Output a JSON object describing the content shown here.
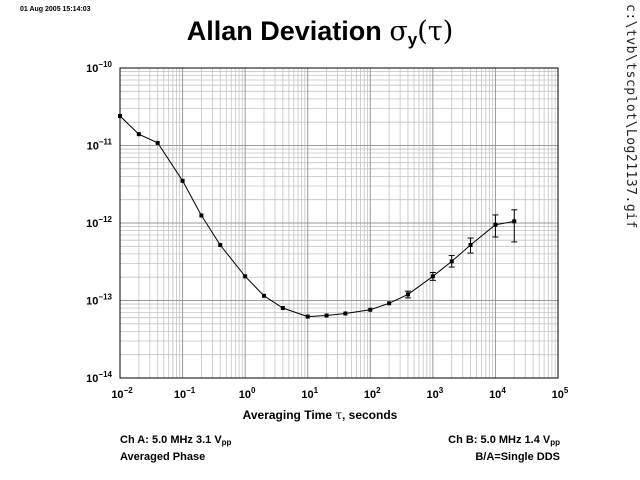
{
  "header": {
    "timestamp": "01 Aug 2005 15:14:03",
    "title_text": "Allan Deviation",
    "title_symbol": "σ",
    "title_subscript": "y",
    "title_paren": "(τ)",
    "file_path": "c:\\tvb\\tscplot\\Log21137.gif"
  },
  "chart_data": {
    "type": "line",
    "title": "Allan Deviation σy(τ)",
    "xlabel": "Averaging Time τ, seconds",
    "ylabel": "",
    "x_scale": "log",
    "y_scale": "log",
    "xlim": [
      0.01,
      100000
    ],
    "ylim": [
      1e-14,
      1e-10
    ],
    "x_ticks": [
      {
        "label": "10",
        "exp": "−2"
      },
      {
        "label": "10",
        "exp": "−1"
      },
      {
        "label": "10",
        "exp": "0"
      },
      {
        "label": "10",
        "exp": "1"
      },
      {
        "label": "10",
        "exp": "2"
      },
      {
        "label": "10",
        "exp": "3"
      },
      {
        "label": "10",
        "exp": "4"
      },
      {
        "label": "10",
        "exp": "5"
      }
    ],
    "y_ticks": [
      {
        "label": "10",
        "exp": "−14"
      },
      {
        "label": "10",
        "exp": "−13"
      },
      {
        "label": "10",
        "exp": "−12"
      },
      {
        "label": "10",
        "exp": "−11"
      },
      {
        "label": "10",
        "exp": "−10"
      }
    ],
    "grid": true,
    "series": [
      {
        "x": [
          0.01,
          0.02,
          0.04,
          0.1,
          0.2,
          0.4,
          1,
          2,
          4,
          10,
          20,
          40,
          100,
          200,
          400,
          1000,
          2000,
          4000,
          10000,
          20000
        ],
        "y": [
          2.4e-11,
          1.4e-11,
          1.08e-11,
          3.5e-12,
          1.25e-12,
          5.2e-13,
          2.05e-13,
          1.15e-13,
          8e-14,
          6.2e-14,
          6.4e-14,
          6.8e-14,
          7.6e-14,
          9.2e-14,
          1.2e-13,
          2.05e-13,
          3.2e-13,
          5.2e-13,
          9.5e-13,
          1.05e-12
        ],
        "err_lo": [
          null,
          null,
          null,
          null,
          null,
          null,
          null,
          null,
          null,
          null,
          null,
          null,
          null,
          null,
          1.08e-13,
          1.82e-13,
          2.7e-13,
          4.1e-13,
          6.6e-13,
          5.7e-13
        ],
        "err_hi": [
          null,
          null,
          null,
          null,
          null,
          null,
          null,
          null,
          null,
          null,
          null,
          null,
          null,
          null,
          1.32e-13,
          2.3e-13,
          3.8e-13,
          6.4e-13,
          1.27e-12,
          1.48e-12
        ]
      }
    ]
  },
  "footer": {
    "ch_a_line1_pre": "Ch A: 5.0 MHz 3.1 V",
    "ch_a_line1_sub": "pp",
    "ch_a_line2": "Averaged Phase",
    "ch_b_line1_pre": "Ch B: 5.0 MHz 1.4 V",
    "ch_b_line1_sub": "pp",
    "ch_b_line2": "B/A=Single DDS"
  }
}
